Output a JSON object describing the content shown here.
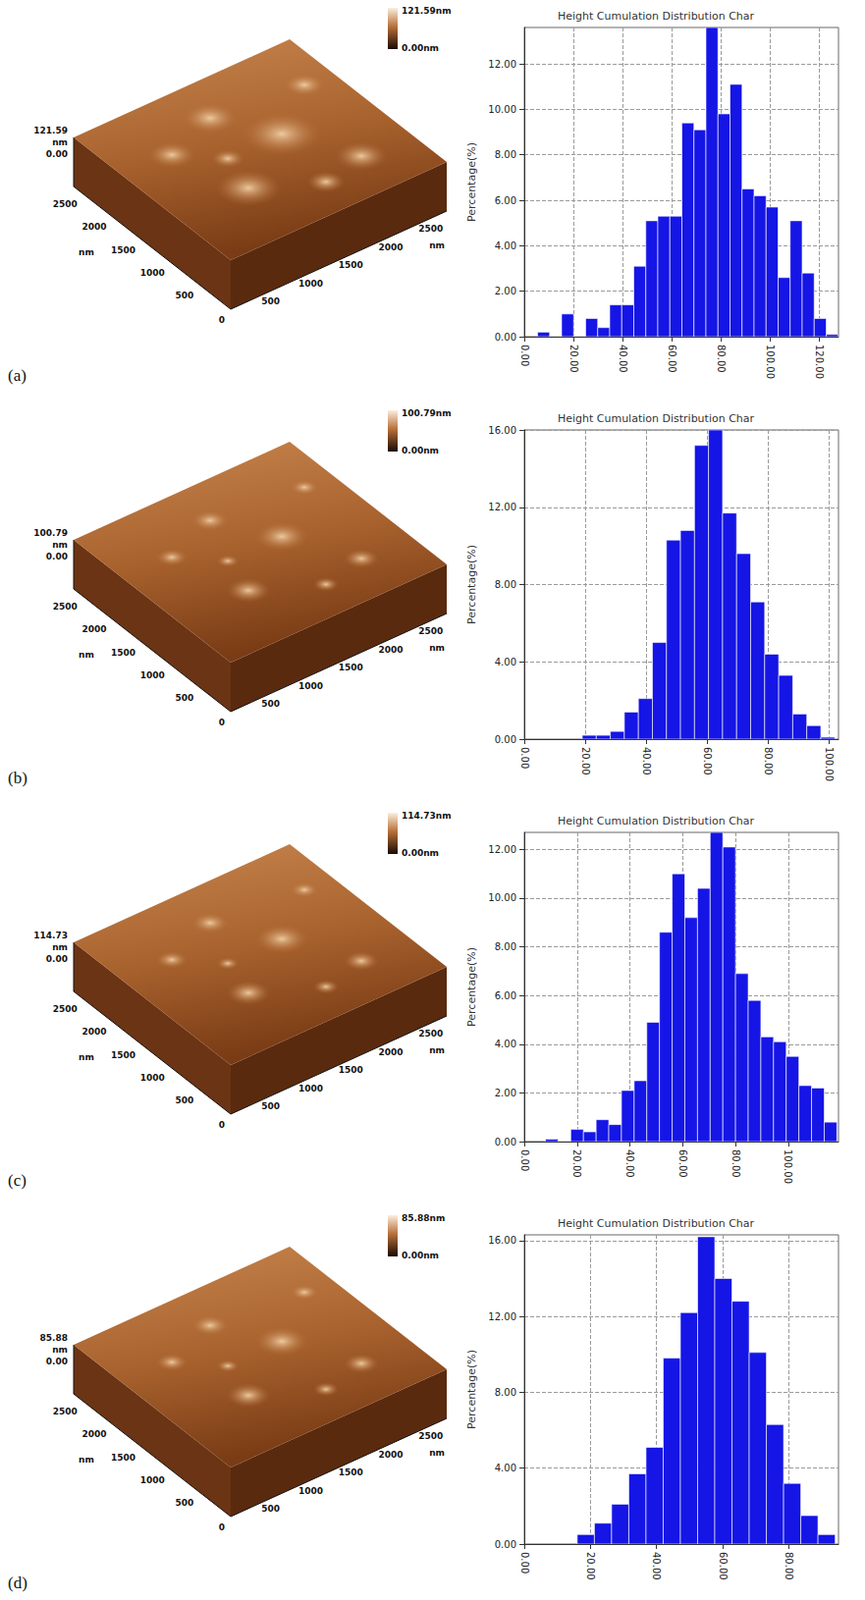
{
  "chart_data": [
    {
      "type": "histogram",
      "panel": "(a)",
      "title": "Height Cumulation Distribution Char",
      "ylabel": "Percentage(%)",
      "bins": [
        5.4,
        10.3,
        15.2,
        20.1,
        25.0,
        29.9,
        34.8,
        39.7,
        44.6,
        49.5,
        54.4,
        59.3,
        64.2,
        69.1,
        74.0,
        78.9,
        83.8,
        88.7,
        93.6,
        98.5,
        103.4,
        108.3,
        113.2,
        118.1,
        123.0,
        127.9
      ],
      "counts": [
        0.2,
        0,
        1.0,
        0,
        0.8,
        0.4,
        1.4,
        1.4,
        3.1,
        5.1,
        5.3,
        5.3,
        9.4,
        9.1,
        13.6,
        9.8,
        11.1,
        6.5,
        6.2,
        5.7,
        2.6,
        5.1,
        2.8,
        0.8,
        0.1
      ],
      "xlim": [
        0,
        128
      ],
      "ylim": [
        0,
        13.6
      ],
      "xticks": [
        {
          "value": 0,
          "label": "0.00"
        },
        {
          "value": 20,
          "label": "20.00"
        },
        {
          "value": 40,
          "label": "40.00"
        },
        {
          "value": 60,
          "label": "60.00"
        },
        {
          "value": 80,
          "label": "80.00"
        },
        {
          "value": 100,
          "label": "100.00"
        },
        {
          "value": 120,
          "label": "120.00"
        }
      ],
      "yticks": [
        {
          "value": 0,
          "label": "0.00"
        },
        {
          "value": 2,
          "label": "2.00"
        },
        {
          "value": 4,
          "label": "4.00"
        },
        {
          "value": 6,
          "label": "6.00"
        },
        {
          "value": 8,
          "label": "8.00"
        },
        {
          "value": 10,
          "label": "10.00"
        },
        {
          "value": 12,
          "label": "12.00"
        }
      ],
      "color": "#1515e6",
      "grid": true
    },
    {
      "type": "histogram",
      "panel": "(b)",
      "title": "Height Cumulation Distribution Char",
      "ylabel": "Percentage(%)",
      "bins": [
        19.0,
        23.6,
        28.2,
        32.8,
        37.4,
        42.0,
        46.6,
        51.2,
        55.8,
        60.4,
        65.0,
        69.6,
        74.2,
        78.8,
        83.4,
        88.0,
        92.6,
        97.2,
        101.8
      ],
      "counts": [
        0.2,
        0.2,
        0.4,
        1.4,
        2.1,
        5.0,
        10.3,
        10.8,
        15.2,
        16.0,
        11.7,
        9.6,
        7.1,
        4.4,
        3.3,
        1.3,
        0.7,
        0.1
      ],
      "xlim": [
        0,
        103
      ],
      "ylim": [
        0,
        16
      ],
      "xticks": [
        {
          "value": 0,
          "label": "0.00"
        },
        {
          "value": 20,
          "label": "20.00"
        },
        {
          "value": 40,
          "label": "40.00"
        },
        {
          "value": 60,
          "label": "60.00"
        },
        {
          "value": 80,
          "label": "80.00"
        },
        {
          "value": 100,
          "label": "100.00"
        }
      ],
      "yticks": [
        {
          "value": 0,
          "label": "0.00"
        },
        {
          "value": 4,
          "label": "4.00"
        },
        {
          "value": 8,
          "label": "8.00"
        },
        {
          "value": 12,
          "label": "12.00"
        },
        {
          "value": 16,
          "label": "16.00"
        }
      ],
      "color": "#1515e6",
      "grid": true
    },
    {
      "type": "histogram",
      "panel": "(c)",
      "title": "Height Cumulation Distribution Char",
      "ylabel": "Percentage(%)",
      "bins": [
        8.0,
        12.8,
        17.6,
        22.4,
        27.2,
        32.0,
        36.8,
        41.6,
        46.4,
        51.2,
        56.0,
        60.8,
        65.6,
        70.4,
        75.2,
        80.0,
        84.8,
        89.6,
        94.4,
        99.2,
        104.0,
        108.8,
        113.6,
        118.4
      ],
      "counts": [
        0.1,
        0,
        0.5,
        0.4,
        0.9,
        0.7,
        2.1,
        2.5,
        4.9,
        8.6,
        11.0,
        9.2,
        10.4,
        12.7,
        12.1,
        6.9,
        5.8,
        4.3,
        4.1,
        3.5,
        2.3,
        2.2,
        0.8
      ],
      "xlim": [
        0,
        119
      ],
      "ylim": [
        0,
        12.7
      ],
      "xticks": [
        {
          "value": 0,
          "label": "0.00"
        },
        {
          "value": 20,
          "label": "20.00"
        },
        {
          "value": 40,
          "label": "40.00"
        },
        {
          "value": 60,
          "label": "60.00"
        },
        {
          "value": 80,
          "label": "80.00"
        },
        {
          "value": 100,
          "label": "100.00"
        }
      ],
      "yticks": [
        {
          "value": 0,
          "label": "0.00"
        },
        {
          "value": 2,
          "label": "2.00"
        },
        {
          "value": 4,
          "label": "4.00"
        },
        {
          "value": 6,
          "label": "6.00"
        },
        {
          "value": 8,
          "label": "8.00"
        },
        {
          "value": 10,
          "label": "10.00"
        },
        {
          "value": 12,
          "label": "12.00"
        }
      ],
      "color": "#1515e6",
      "grid": true
    },
    {
      "type": "histogram",
      "panel": "(d)",
      "title": "Height Cumulation Distribution Char",
      "ylabel": "Percentage(%)",
      "bins": [
        16.0,
        21.2,
        26.4,
        31.6,
        36.8,
        42.0,
        47.2,
        52.4,
        57.6,
        62.8,
        68.0,
        73.2,
        78.4,
        83.6,
        88.8,
        94.0
      ],
      "counts": [
        0.5,
        1.1,
        2.1,
        3.7,
        5.1,
        9.8,
        12.2,
        16.2,
        14.0,
        12.8,
        10.1,
        6.3,
        3.2,
        1.5,
        0.5
      ],
      "xlim": [
        0,
        95
      ],
      "ylim": [
        0,
        16.3
      ],
      "xticks": [
        {
          "value": 0,
          "label": "0.00"
        },
        {
          "value": 20,
          "label": "20.00"
        },
        {
          "value": 40,
          "label": "40.00"
        },
        {
          "value": 60,
          "label": "60.00"
        },
        {
          "value": 80,
          "label": "80.00"
        }
      ],
      "yticks": [
        {
          "value": 0,
          "label": "0.00"
        },
        {
          "value": 4,
          "label": "4.00"
        },
        {
          "value": 8,
          "label": "8.00"
        },
        {
          "value": 12,
          "label": "12.00"
        },
        {
          "value": 16,
          "label": "16.00"
        }
      ],
      "color": "#1515e6",
      "grid": true
    }
  ],
  "surface_images": [
    {
      "colorbar": [
        "121.59nm",
        "0.00nm"
      ],
      "z_labels": [
        "121.59",
        "0.00"
      ],
      "unit": "nm",
      "origin": "0",
      "xlim": [
        0,
        2700
      ],
      "ylim": [
        0,
        2700
      ],
      "x_ticks": [
        500,
        1000,
        1500,
        2000,
        2500
      ],
      "y_ticks": [
        500,
        1000,
        1500,
        2000,
        2500
      ]
    },
    {
      "colorbar": [
        "100.79nm",
        "0.00nm"
      ],
      "z_labels": [
        "100.79",
        "0.00"
      ],
      "unit": "nm",
      "origin": "0",
      "xlim": [
        0,
        2700
      ],
      "ylim": [
        0,
        2700
      ],
      "x_ticks": [
        500,
        1000,
        1500,
        2000,
        2500
      ],
      "y_ticks": [
        500,
        1000,
        1500,
        2000,
        2500
      ]
    },
    {
      "colorbar": [
        "114.73nm",
        "0.00nm"
      ],
      "z_labels": [
        "114.73",
        "0.00"
      ],
      "unit": "nm",
      "origin": "0",
      "xlim": [
        0,
        2700
      ],
      "ylim": [
        0,
        2700
      ],
      "x_ticks": [
        500,
        1000,
        1500,
        2000,
        2500
      ],
      "y_ticks": [
        500,
        1000,
        1500,
        2000,
        2500
      ]
    },
    {
      "colorbar": [
        "85.88nm",
        "0.00nm"
      ],
      "z_labels": [
        "85.88",
        "0.00"
      ],
      "unit": "nm",
      "origin": "0",
      "xlim": [
        0,
        2700
      ],
      "ylim": [
        0,
        2700
      ],
      "x_ticks": [
        500,
        1000,
        1500,
        2000,
        2500
      ],
      "y_ticks": [
        500,
        1000,
        1500,
        2000,
        2500
      ]
    }
  ]
}
